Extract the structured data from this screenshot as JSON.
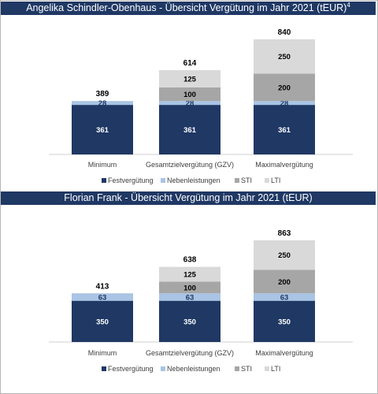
{
  "colors": {
    "festverguetung": "#1f3864",
    "nebenleistungen": "#a9c4e4",
    "sti": "#a6a6a6",
    "lti": "#d9d9d9",
    "header": "#1f3864"
  },
  "legend": [
    "Festvergütung",
    "Nebenleistungen",
    "STI",
    "LTI"
  ],
  "chart_data": [
    {
      "type": "bar",
      "stacked": true,
      "title": "Angelika Schindler-Obenhaus - Übersicht Vergütung im Jahr 2021 (tEUR)",
      "title_sup": "4",
      "categories": [
        "Minimum",
        "Gesamtzielvergütung (GZV)",
        "Maximalvergütung"
      ],
      "series": [
        {
          "name": "Festvergütung",
          "values": [
            361,
            361,
            361
          ]
        },
        {
          "name": "Nebenleistungen",
          "values": [
            28,
            28,
            28
          ]
        },
        {
          "name": "STI",
          "values": [
            0,
            100,
            200
          ]
        },
        {
          "name": "LTI",
          "values": [
            0,
            125,
            250
          ]
        }
      ],
      "totals": [
        389,
        614,
        840
      ],
      "ylim": [
        0,
        900
      ],
      "legend_position": "bottom",
      "grid": false
    },
    {
      "type": "bar",
      "stacked": true,
      "title": "Florian Frank - Übersicht Vergütung im Jahr 2021 (tEUR)",
      "categories": [
        "Minimum",
        "Gesamtzielvergütung (GZV)",
        "Maximalvergütung"
      ],
      "series": [
        {
          "name": "Festvergütung",
          "values": [
            350,
            350,
            350
          ]
        },
        {
          "name": "Nebenleistungen",
          "values": [
            63,
            63,
            63
          ]
        },
        {
          "name": "STI",
          "values": [
            0,
            100,
            200
          ]
        },
        {
          "name": "LTI",
          "values": [
            0,
            125,
            250
          ]
        }
      ],
      "totals": [
        413,
        638,
        863
      ],
      "ylim": [
        0,
        900
      ],
      "legend_position": "bottom",
      "grid": false
    }
  ]
}
